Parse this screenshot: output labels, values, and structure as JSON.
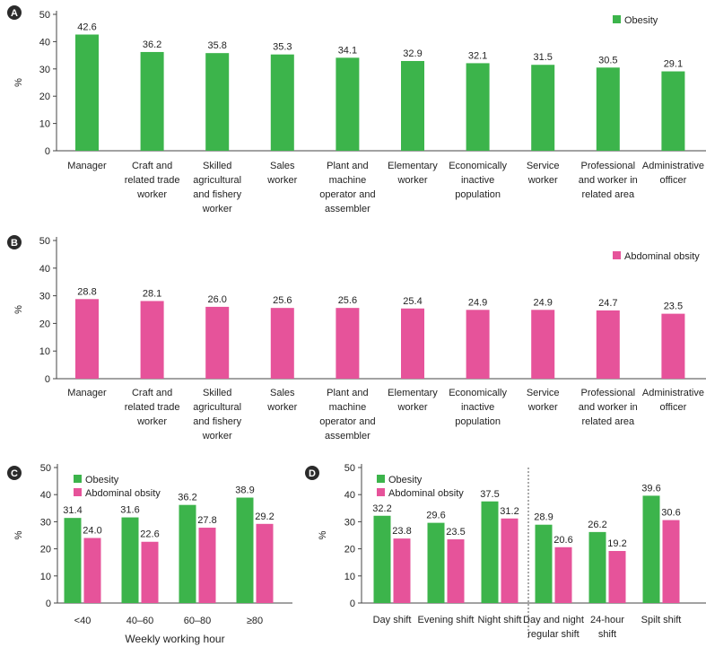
{
  "chart_data": [
    {
      "panel": "A",
      "type": "bar",
      "categories": [
        [
          "Manager"
        ],
        [
          "Craft and",
          "related trade",
          "worker"
        ],
        [
          "Skilled",
          "agricultural",
          "and fishery",
          "worker"
        ],
        [
          "Sales",
          "worker"
        ],
        [
          "Plant and",
          "machine",
          "operator and",
          "assembler"
        ],
        [
          "Elementary",
          "worker"
        ],
        [
          "Economically",
          "inactive",
          "population"
        ],
        [
          "Service",
          "worker"
        ],
        [
          "Professional",
          "and worker in",
          "related area"
        ],
        [
          "Administrative",
          "officer"
        ]
      ],
      "series": [
        {
          "name": "Obesity",
          "color": "#3cb44b",
          "values": [
            42.6,
            36.2,
            35.8,
            35.3,
            34.1,
            32.9,
            32.1,
            31.5,
            30.5,
            29.1
          ],
          "labels": [
            "42.6",
            "36.2",
            "35.8",
            "35.3",
            "34.1",
            "32.9",
            "32.1",
            "31.5",
            "30.5",
            "29.1"
          ]
        }
      ],
      "ylabel": "%",
      "ylim": [
        0,
        50
      ],
      "yticks": [
        0,
        10,
        20,
        30,
        40,
        50
      ],
      "legend_position": "top-right"
    },
    {
      "panel": "B",
      "type": "bar",
      "categories": [
        [
          "Manager"
        ],
        [
          "Craft and",
          "related trade",
          "worker"
        ],
        [
          "Skilled",
          "agricultural",
          "and fishery",
          "worker"
        ],
        [
          "Sales",
          "worker"
        ],
        [
          "Plant and",
          "machine",
          "operator and",
          "assembler"
        ],
        [
          "Elementary",
          "worker"
        ],
        [
          "Economically",
          "inactive",
          "population"
        ],
        [
          "Service",
          "worker"
        ],
        [
          "Professional",
          "and worker in",
          "related area"
        ],
        [
          "Administrative",
          "officer"
        ]
      ],
      "series": [
        {
          "name": "Abdominal obsity",
          "color": "#e6539a",
          "values": [
            28.8,
            28.1,
            26.0,
            25.6,
            25.6,
            25.4,
            24.9,
            24.9,
            24.7,
            23.5
          ],
          "labels": [
            "28.8",
            "28.1",
            "26.0",
            "25.6",
            "25.6",
            "25.4",
            "24.9",
            "24.9",
            "24.7",
            "23.5"
          ]
        }
      ],
      "ylabel": "%",
      "ylim": [
        0,
        50
      ],
      "yticks": [
        0,
        10,
        20,
        30,
        40,
        50
      ],
      "legend_position": "top-right"
    },
    {
      "panel": "C",
      "type": "bar",
      "categories": [
        [
          "<40"
        ],
        [
          "40–60"
        ],
        [
          "60–80"
        ],
        [
          "≥80"
        ]
      ],
      "series": [
        {
          "name": "Obesity",
          "color": "#3cb44b",
          "values": [
            31.4,
            31.6,
            36.2,
            38.9
          ],
          "labels": [
            "31.4",
            "31.6",
            "36.2",
            "38.9"
          ]
        },
        {
          "name": "Abdominal obsity",
          "color": "#e6539a",
          "values": [
            24.0,
            22.6,
            27.8,
            29.2
          ],
          "labels": [
            "24.0",
            "22.6",
            "27.8",
            "29.2"
          ]
        }
      ],
      "xlabel": "Weekly working hour",
      "ylabel": "%",
      "ylim": [
        0,
        50
      ],
      "yticks": [
        0,
        10,
        20,
        30,
        40,
        50
      ],
      "legend_position": "top-left"
    },
    {
      "panel": "D",
      "type": "bar",
      "categories": [
        [
          "Day shift"
        ],
        [
          "Evening shift"
        ],
        [
          "Night shift"
        ],
        [
          "Day and night",
          "regular shift"
        ],
        [
          "24-hour",
          "shift"
        ],
        [
          "Spilt shift"
        ]
      ],
      "series": [
        {
          "name": "Obesity",
          "color": "#3cb44b",
          "values": [
            32.2,
            29.6,
            37.5,
            28.9,
            26.2,
            39.6
          ],
          "labels": [
            "32.2",
            "29.6",
            "37.5",
            "28.9",
            "26.2",
            "39.6"
          ]
        },
        {
          "name": "Abdominal obsity",
          "color": "#e6539a",
          "values": [
            23.8,
            23.5,
            31.2,
            20.6,
            19.2,
            30.6
          ],
          "labels": [
            "23.8",
            "23.5",
            "31.2",
            "20.6",
            "19.2",
            "30.6"
          ]
        }
      ],
      "ylabel": "%",
      "ylim": [
        0,
        50
      ],
      "yticks": [
        0,
        10,
        20,
        30,
        40,
        50
      ],
      "divider_after_category": 3,
      "legend_position": "top-left"
    }
  ]
}
